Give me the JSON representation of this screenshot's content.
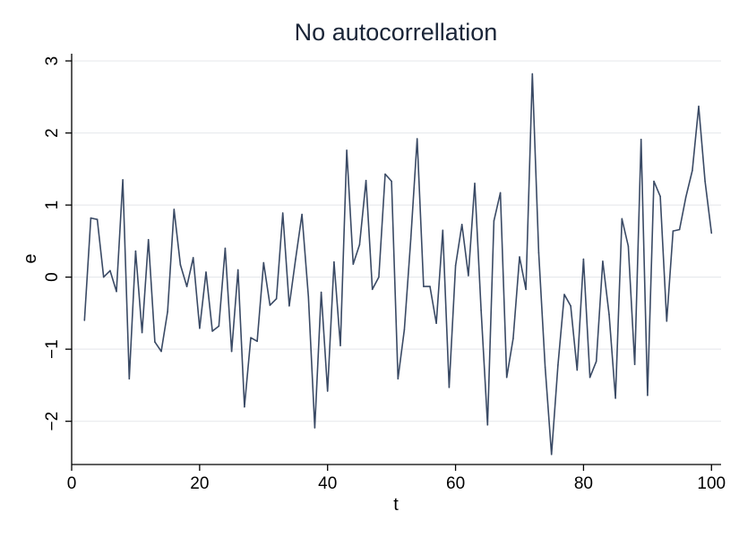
{
  "chart_data": {
    "type": "line",
    "title": "No autocorrellation",
    "xlabel": "t",
    "ylabel": "e",
    "xlim": [
      0,
      101.5
    ],
    "ylim": [
      -2.6,
      3.1
    ],
    "xticks": [
      0,
      20,
      40,
      60,
      80,
      100
    ],
    "yticks": [
      -2,
      -1,
      0,
      1,
      2,
      3
    ],
    "xtick_labels": [
      "0",
      "20",
      "40",
      "60",
      "80",
      "100"
    ],
    "ytick_labels": [
      "−2",
      "−1",
      "0",
      "1",
      "2",
      "3"
    ],
    "grid": true,
    "series": [
      {
        "color": "#3a4a65",
        "x": [
          2,
          3,
          4,
          5,
          6,
          7,
          8,
          9,
          10,
          11,
          12,
          13,
          14,
          15,
          16,
          17,
          18,
          19,
          20,
          21,
          22,
          23,
          24,
          25,
          26,
          27,
          28,
          29,
          30,
          31,
          32,
          33,
          34,
          35,
          36,
          37,
          38,
          39,
          40,
          41,
          42,
          43,
          44,
          45,
          46,
          47,
          48,
          49,
          50,
          51,
          52,
          53,
          54,
          55,
          56,
          57,
          58,
          59,
          60,
          61,
          62,
          63,
          64,
          65,
          66,
          67,
          68,
          69,
          70,
          71,
          72,
          73,
          74,
          75,
          76,
          77,
          78,
          79,
          80,
          81,
          82,
          83,
          84,
          85,
          86,
          87,
          88,
          89,
          90,
          91,
          92,
          93,
          94,
          95,
          96,
          97,
          98,
          99,
          100
        ],
        "values": [
          -0.6,
          0.82,
          0.8,
          0.0,
          0.09,
          -0.2,
          1.35,
          -1.41,
          0.36,
          -0.77,
          0.52,
          -0.9,
          -1.03,
          -0.48,
          0.94,
          0.17,
          -0.13,
          0.27,
          -0.71,
          0.07,
          -0.75,
          -0.68,
          0.4,
          -1.03,
          0.1,
          -1.8,
          -0.84,
          -0.89,
          0.2,
          -0.39,
          -0.3,
          0.89,
          -0.4,
          0.25,
          0.87,
          -0.27,
          -2.09,
          -0.21,
          -1.58,
          0.21,
          -0.95,
          1.76,
          0.18,
          0.45,
          1.34,
          -0.17,
          0.0,
          1.43,
          1.33,
          -1.41,
          -0.73,
          0.53,
          1.92,
          -0.13,
          -0.13,
          -0.64,
          0.65,
          -1.53,
          0.16,
          0.73,
          0.02,
          1.3,
          -0.46,
          -2.05,
          0.78,
          1.17,
          -1.39,
          -0.85,
          0.28,
          -0.17,
          2.82,
          0.34,
          -1.25,
          -2.46,
          -1.22,
          -0.24,
          -0.4,
          -1.29,
          0.25,
          -1.39,
          -1.17,
          0.22,
          -0.52,
          -1.68,
          0.81,
          0.43,
          -1.21,
          1.91,
          -1.64,
          1.33,
          1.12,
          -0.61,
          0.64,
          0.66,
          1.11,
          1.48,
          2.37,
          1.33,
          0.61
        ]
      }
    ]
  }
}
